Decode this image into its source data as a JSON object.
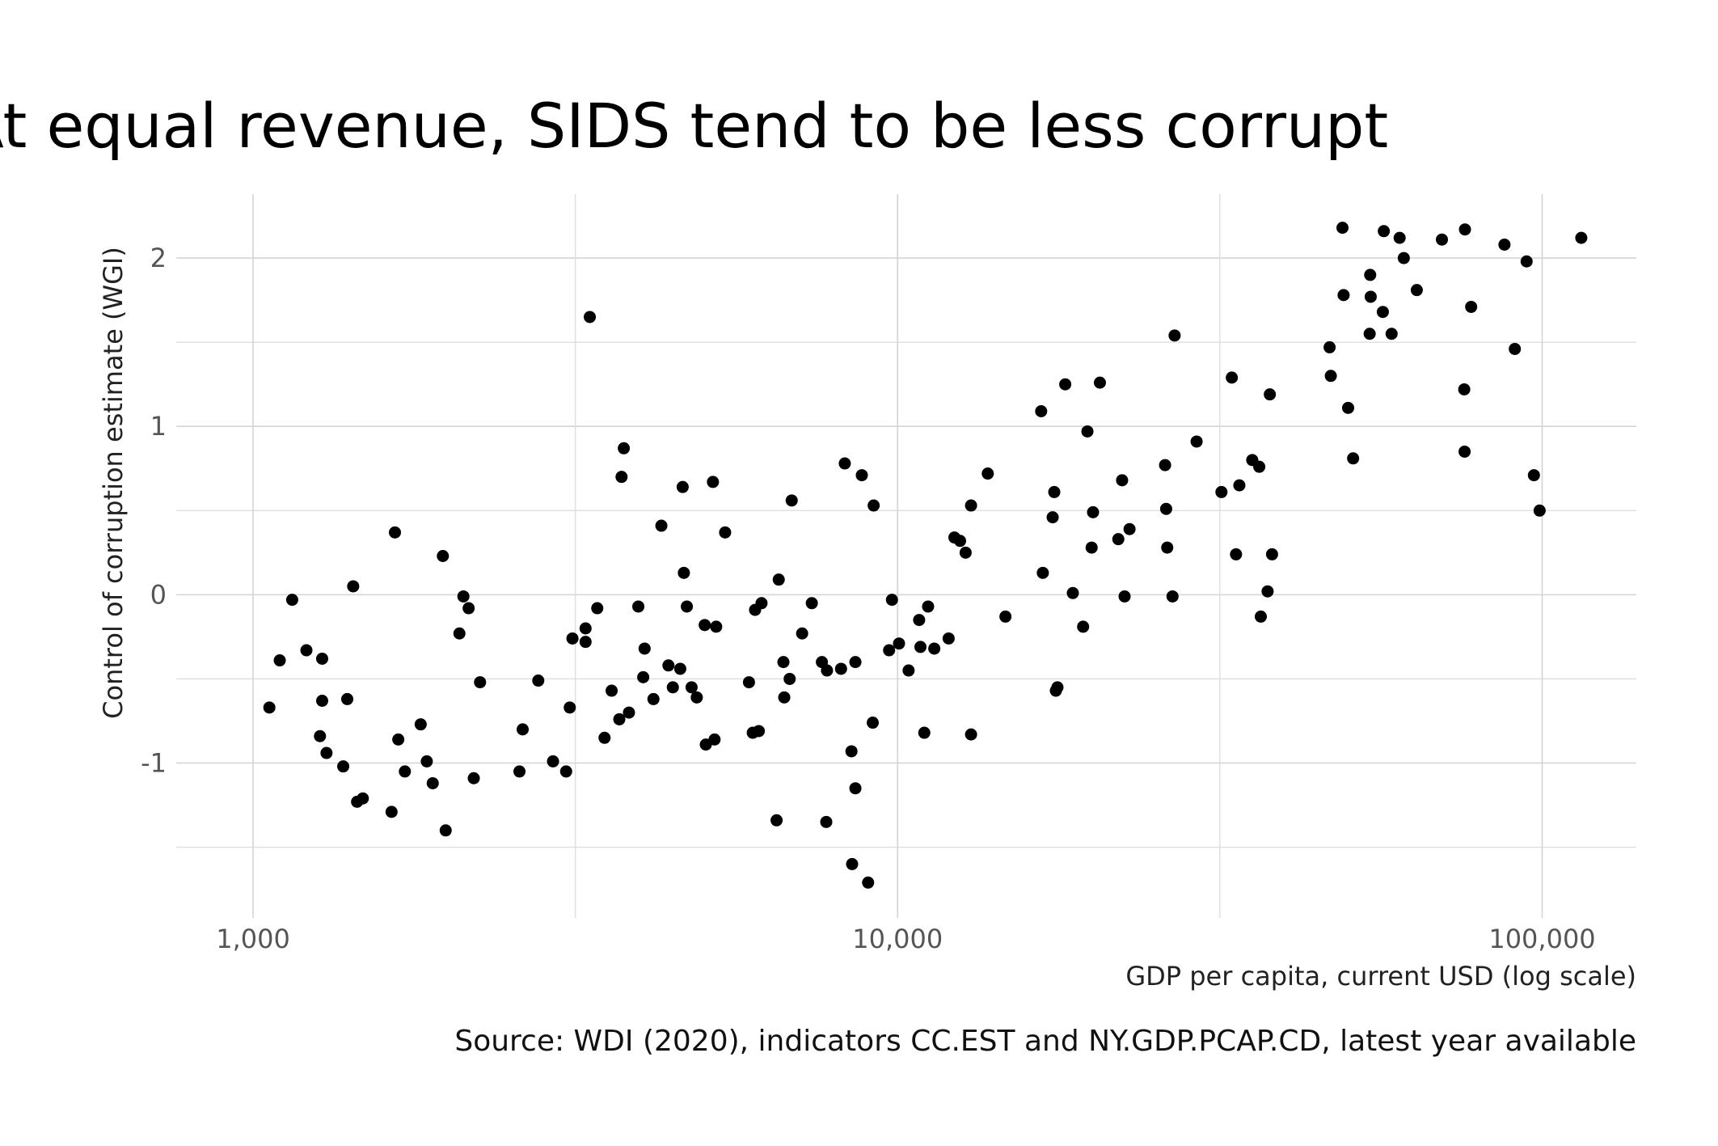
{
  "chart_data": {
    "type": "scatter",
    "title": "At equal revenue, SIDS tend to be less corrupt",
    "xlabel": "GDP per capita, current USD (log scale)",
    "ylabel": "Control of corruption estimate (WGI)",
    "caption": "Source: WDI (2020), indicators CC.EST and NY.GDP.PCAP.CD, latest year available",
    "x_scale": "log",
    "xlim": [
      760,
      140000
    ],
    "ylim": [
      -1.92,
      2.38
    ],
    "x_ticks": [
      {
        "value": 1000,
        "label": "1,000"
      },
      {
        "value": 10000,
        "label": "10,000"
      },
      {
        "value": 100000,
        "label": "100,000"
      }
    ],
    "y_ticks": [
      {
        "value": -1,
        "label": "-1"
      },
      {
        "value": 0,
        "label": "0"
      },
      {
        "value": 1,
        "label": "1"
      },
      {
        "value": 2,
        "label": "2"
      }
    ],
    "grid": true,
    "legend": "none",
    "point_color": "#000000",
    "points": [
      {
        "x": 1060,
        "y": -0.67
      },
      {
        "x": 1100,
        "y": -0.39
      },
      {
        "x": 1150,
        "y": -0.03
      },
      {
        "x": 1210,
        "y": -0.33
      },
      {
        "x": 1270,
        "y": -0.84
      },
      {
        "x": 1280,
        "y": -0.38
      },
      {
        "x": 1280,
        "y": -0.63
      },
      {
        "x": 1300,
        "y": -0.94
      },
      {
        "x": 1380,
        "y": -1.02
      },
      {
        "x": 1400,
        "y": -0.62
      },
      {
        "x": 1430,
        "y": 0.05
      },
      {
        "x": 1450,
        "y": -1.23
      },
      {
        "x": 1480,
        "y": -1.21
      },
      {
        "x": 1640,
        "y": -1.29
      },
      {
        "x": 1660,
        "y": 0.37
      },
      {
        "x": 1680,
        "y": -0.86
      },
      {
        "x": 1720,
        "y": -1.05
      },
      {
        "x": 1820,
        "y": -0.77
      },
      {
        "x": 1860,
        "y": -0.99
      },
      {
        "x": 1900,
        "y": -1.12
      },
      {
        "x": 1970,
        "y": 0.23
      },
      {
        "x": 1990,
        "y": -1.4
      },
      {
        "x": 2090,
        "y": -0.23
      },
      {
        "x": 2120,
        "y": -0.01
      },
      {
        "x": 2160,
        "y": -0.08
      },
      {
        "x": 2200,
        "y": -1.09
      },
      {
        "x": 2250,
        "y": -0.52
      },
      {
        "x": 2590,
        "y": -1.05
      },
      {
        "x": 2620,
        "y": -0.8
      },
      {
        "x": 2770,
        "y": -0.51
      },
      {
        "x": 2920,
        "y": -0.99
      },
      {
        "x": 3060,
        "y": -1.05
      },
      {
        "x": 3100,
        "y": -0.67
      },
      {
        "x": 3130,
        "y": -0.26
      },
      {
        "x": 3280,
        "y": -0.2
      },
      {
        "x": 3280,
        "y": -0.28
      },
      {
        "x": 3330,
        "y": 1.65
      },
      {
        "x": 3420,
        "y": -0.08
      },
      {
        "x": 3510,
        "y": -0.85
      },
      {
        "x": 3600,
        "y": -0.57
      },
      {
        "x": 3700,
        "y": -0.74
      },
      {
        "x": 3730,
        "y": 0.7
      },
      {
        "x": 3760,
        "y": 0.87
      },
      {
        "x": 3830,
        "y": -0.7
      },
      {
        "x": 3960,
        "y": -0.07
      },
      {
        "x": 4030,
        "y": -0.49
      },
      {
        "x": 4050,
        "y": -0.32
      },
      {
        "x": 4180,
        "y": -0.62
      },
      {
        "x": 4300,
        "y": 0.41
      },
      {
        "x": 4410,
        "y": -0.42
      },
      {
        "x": 4480,
        "y": -0.55
      },
      {
        "x": 4600,
        "y": -0.44
      },
      {
        "x": 4640,
        "y": 0.64
      },
      {
        "x": 4660,
        "y": 0.13
      },
      {
        "x": 4710,
        "y": -0.07
      },
      {
        "x": 4790,
        "y": -0.55
      },
      {
        "x": 4880,
        "y": -0.61
      },
      {
        "x": 5020,
        "y": -0.18
      },
      {
        "x": 5040,
        "y": -0.89
      },
      {
        "x": 5170,
        "y": 0.67
      },
      {
        "x": 5200,
        "y": -0.86
      },
      {
        "x": 5230,
        "y": -0.19
      },
      {
        "x": 5400,
        "y": 0.37
      },
      {
        "x": 5880,
        "y": -0.52
      },
      {
        "x": 5960,
        "y": -0.82
      },
      {
        "x": 6010,
        "y": -0.09
      },
      {
        "x": 6090,
        "y": -0.81
      },
      {
        "x": 6150,
        "y": -0.05
      },
      {
        "x": 6490,
        "y": -1.34
      },
      {
        "x": 6540,
        "y": 0.09
      },
      {
        "x": 6650,
        "y": -0.4
      },
      {
        "x": 6670,
        "y": -0.61
      },
      {
        "x": 6800,
        "y": -0.5
      },
      {
        "x": 6850,
        "y": 0.56
      },
      {
        "x": 7110,
        "y": -0.23
      },
      {
        "x": 7360,
        "y": -0.05
      },
      {
        "x": 7630,
        "y": -0.4
      },
      {
        "x": 7770,
        "y": -0.45
      },
      {
        "x": 7750,
        "y": -1.35
      },
      {
        "x": 8170,
        "y": -0.44
      },
      {
        "x": 8280,
        "y": 0.78
      },
      {
        "x": 8480,
        "y": -0.93
      },
      {
        "x": 8500,
        "y": -1.6
      },
      {
        "x": 8600,
        "y": -0.4
      },
      {
        "x": 8600,
        "y": -1.15
      },
      {
        "x": 8800,
        "y": 0.71
      },
      {
        "x": 9000,
        "y": -1.71
      },
      {
        "x": 9150,
        "y": -0.76
      },
      {
        "x": 9180,
        "y": 0.53
      },
      {
        "x": 9700,
        "y": -0.33
      },
      {
        "x": 9800,
        "y": -0.03
      },
      {
        "x": 10050,
        "y": -0.29
      },
      {
        "x": 10400,
        "y": -0.45
      },
      {
        "x": 10800,
        "y": -0.15
      },
      {
        "x": 10850,
        "y": -0.31
      },
      {
        "x": 11000,
        "y": -0.82
      },
      {
        "x": 11150,
        "y": -0.07
      },
      {
        "x": 11400,
        "y": -0.32
      },
      {
        "x": 12000,
        "y": -0.26
      },
      {
        "x": 12250,
        "y": 0.34
      },
      {
        "x": 12500,
        "y": 0.32
      },
      {
        "x": 12750,
        "y": 0.25
      },
      {
        "x": 13000,
        "y": 0.53
      },
      {
        "x": 13000,
        "y": -0.83
      },
      {
        "x": 13800,
        "y": 0.72
      },
      {
        "x": 14700,
        "y": -0.13
      },
      {
        "x": 16700,
        "y": 1.09
      },
      {
        "x": 16800,
        "y": 0.13
      },
      {
        "x": 17400,
        "y": 0.46
      },
      {
        "x": 17500,
        "y": 0.61
      },
      {
        "x": 17600,
        "y": -0.57
      },
      {
        "x": 17700,
        "y": -0.55
      },
      {
        "x": 18200,
        "y": 1.25
      },
      {
        "x": 18700,
        "y": 0.01
      },
      {
        "x": 19400,
        "y": -0.19
      },
      {
        "x": 19700,
        "y": 0.97
      },
      {
        "x": 20000,
        "y": 0.28
      },
      {
        "x": 20100,
        "y": 0.49
      },
      {
        "x": 20600,
        "y": 1.26
      },
      {
        "x": 22000,
        "y": 0.33
      },
      {
        "x": 22300,
        "y": 0.68
      },
      {
        "x": 22500,
        "y": -0.01
      },
      {
        "x": 22900,
        "y": 0.39
      },
      {
        "x": 26000,
        "y": 0.77
      },
      {
        "x": 26100,
        "y": 0.51
      },
      {
        "x": 26200,
        "y": 0.28
      },
      {
        "x": 26700,
        "y": -0.01
      },
      {
        "x": 26900,
        "y": 1.54
      },
      {
        "x": 29100,
        "y": 0.91
      },
      {
        "x": 31800,
        "y": 0.61
      },
      {
        "x": 33000,
        "y": 1.29
      },
      {
        "x": 33500,
        "y": 0.24
      },
      {
        "x": 33900,
        "y": 0.65
      },
      {
        "x": 35500,
        "y": 0.8
      },
      {
        "x": 36400,
        "y": 0.76
      },
      {
        "x": 36600,
        "y": -0.13
      },
      {
        "x": 37500,
        "y": 0.02
      },
      {
        "x": 37800,
        "y": 1.19
      },
      {
        "x": 38100,
        "y": 0.24
      },
      {
        "x": 46800,
        "y": 1.47
      },
      {
        "x": 47000,
        "y": 1.3
      },
      {
        "x": 49000,
        "y": 2.18
      },
      {
        "x": 49200,
        "y": 1.78
      },
      {
        "x": 50000,
        "y": 1.11
      },
      {
        "x": 50900,
        "y": 0.81
      },
      {
        "x": 54000,
        "y": 1.55
      },
      {
        "x": 54100,
        "y": 1.9
      },
      {
        "x": 54200,
        "y": 1.77
      },
      {
        "x": 56600,
        "y": 1.68
      },
      {
        "x": 56800,
        "y": 2.16
      },
      {
        "x": 58400,
        "y": 1.55
      },
      {
        "x": 60100,
        "y": 2.12
      },
      {
        "x": 61000,
        "y": 2.0
      },
      {
        "x": 63900,
        "y": 1.81
      },
      {
        "x": 69900,
        "y": 2.11
      },
      {
        "x": 75700,
        "y": 1.22
      },
      {
        "x": 75800,
        "y": 0.85
      },
      {
        "x": 75900,
        "y": 2.17
      },
      {
        "x": 77600,
        "y": 1.71
      },
      {
        "x": 87400,
        "y": 2.08
      },
      {
        "x": 90700,
        "y": 1.46
      },
      {
        "x": 94600,
        "y": 1.98
      },
      {
        "x": 97100,
        "y": 0.71
      },
      {
        "x": 99100,
        "y": 0.5
      },
      {
        "x": 115000,
        "y": 2.12
      }
    ]
  }
}
